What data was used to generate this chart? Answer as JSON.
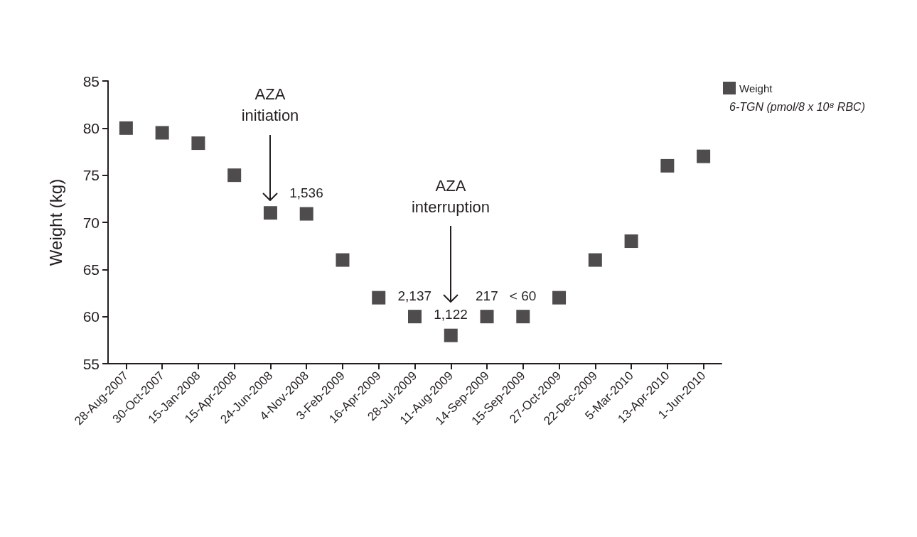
{
  "chart_data": {
    "type": "scatter",
    "ylabel": "Weight (kg)",
    "categories": [
      "28-Aug-2007",
      "30-Oct-2007",
      "15-Jan-2008",
      "15-Apr-2008",
      "24-Jun-2008",
      "4-Nov-2008",
      "3-Feb-2009",
      "16-Apr-2009",
      "28-Jul-2009",
      "11-Aug-2009",
      "14-Sep-2009",
      "15-Sep-2009",
      "27-Oct-2009",
      "22-Dec-2009",
      "5-Mar-2010",
      "13-Apr-2010",
      "1-Jun-2010"
    ],
    "series": [
      {
        "name": "Weight",
        "color": "#231f20",
        "values": [
          80,
          79.5,
          78.4,
          75,
          71,
          70.9,
          66,
          62,
          60,
          58,
          60,
          60,
          62,
          66,
          68,
          76,
          77
        ]
      }
    ],
    "ylim": [
      55,
      85
    ],
    "yticks": [
      55,
      60,
      65,
      70,
      75,
      80,
      85
    ],
    "marker": "square",
    "grid": false,
    "legend": "top right",
    "annotations": [
      "AZA initiation",
      "AZA interruption",
      {
        "text": "1,536",
        "x": "4-Nov-2008",
        "y": 70.9
      },
      {
        "text": "2,137",
        "x": "28-Jul-2009",
        "y": 60
      },
      {
        "text": "1,122",
        "x": "11-Aug-2009",
        "y": 58
      },
      {
        "text": "217",
        "x": "14-Sep-2009",
        "y": 60
      },
      {
        "text": "< 60",
        "x": "15-Sep-2009",
        "y": 60
      },
      "6-TGN (pmol/8 x 10⁸ RBC)"
    ]
  }
}
